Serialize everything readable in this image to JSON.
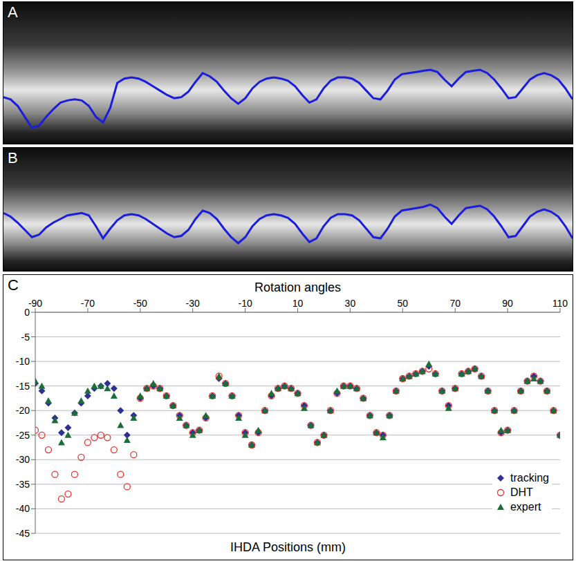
{
  "chart_data": [
    {
      "panel": "A",
      "type": "line",
      "tick_labels": false,
      "x": [
        -90,
        -87.5,
        -85,
        -82.5,
        -80,
        -77.5,
        -75,
        -72.5,
        -70,
        -67.5,
        -65,
        -62.5,
        -60,
        -57.5,
        -55,
        -52.5,
        -50,
        -47.5,
        -45,
        -42.5,
        -40,
        -37.5,
        -35,
        -32.5,
        -30,
        -27.5,
        -25,
        -22.5,
        -20,
        -17.5,
        -15,
        -12.5,
        -10,
        -7.5,
        -5,
        -2.5,
        0,
        2.5,
        5,
        7.5,
        10,
        12.5,
        15,
        17.5,
        20,
        22.5,
        25,
        27.5,
        30,
        32.5,
        35,
        37.5,
        40,
        42.5,
        45,
        47.5,
        50,
        52.5,
        55,
        57.5,
        60,
        62.5,
        65,
        67.5,
        70,
        72.5,
        75,
        77.5,
        80,
        82.5,
        85,
        87.5,
        90,
        92.5,
        95,
        97.5,
        100,
        102.5,
        105,
        107.5,
        110
      ],
      "series": [
        {
          "color": "#1c1cdc",
          "values": [
            -24,
            -25,
            -28,
            -33,
            -38,
            -37,
            -33,
            -29.5,
            -26.5,
            -25.5,
            -25,
            -25.5,
            -28,
            -33,
            -35.5,
            -29,
            -17.5,
            -15.5,
            -15,
            -15.5,
            -17,
            -19,
            -21,
            -23,
            -24.5,
            -24,
            -21.5,
            -17,
            -13,
            -14.5,
            -17,
            -21,
            -24.5,
            -27,
            -24.5,
            -20,
            -17,
            -15.5,
            -15,
            -15.5,
            -16.5,
            -19,
            -23,
            -26.5,
            -25,
            -20,
            -16.5,
            -15,
            -15,
            -15.5,
            -17.5,
            -21,
            -24.5,
            -25,
            -21,
            -16,
            -13.5,
            -13,
            -12.5,
            -12,
            -11.5,
            -12.5,
            -16,
            -19,
            -15.5,
            -12.5,
            -12,
            -11.5,
            -13,
            -16,
            -20,
            -24.5,
            -24,
            -20,
            -16,
            -14,
            -13,
            -14,
            -16,
            -20,
            -25
          ]
        }
      ]
    },
    {
      "panel": "B",
      "type": "line",
      "tick_labels": false,
      "x": [
        -90,
        -87.5,
        -85,
        -82.5,
        -80,
        -77.5,
        -75,
        -72.5,
        -70,
        -67.5,
        -65,
        -62.5,
        -60,
        -57.5,
        -55,
        -52.5,
        -50,
        -47.5,
        -45,
        -42.5,
        -40,
        -37.5,
        -35,
        -32.5,
        -30,
        -27.5,
        -25,
        -22.5,
        -20,
        -17.5,
        -15,
        -12.5,
        -10,
        -7.5,
        -5,
        -2.5,
        0,
        2.5,
        5,
        7.5,
        10,
        12.5,
        15,
        17.5,
        20,
        22.5,
        25,
        27.5,
        30,
        32.5,
        35,
        37.5,
        40,
        42.5,
        45,
        47.5,
        50,
        52.5,
        55,
        57.5,
        60,
        62.5,
        65,
        67.5,
        70,
        72.5,
        75,
        77.5,
        80,
        82.5,
        85,
        87.5,
        90,
        92.5,
        95,
        97.5,
        100,
        102.5,
        105,
        107.5,
        110
      ],
      "series": [
        {
          "color": "#1c1cdc",
          "values": [
            -14.5,
            -16,
            -18.5,
            -21.5,
            -24.5,
            -23.5,
            -20.5,
            -18.5,
            -17,
            -15.5,
            -15,
            -14.5,
            -15.5,
            -20,
            -25,
            -21,
            -17.5,
            -15.5,
            -15,
            -15.5,
            -17,
            -19,
            -21,
            -23,
            -24.5,
            -24,
            -21.5,
            -17,
            -13.5,
            -14.5,
            -17,
            -21,
            -24.5,
            -27,
            -24.5,
            -20,
            -17,
            -15.5,
            -15,
            -15.5,
            -16.5,
            -19,
            -23,
            -26.5,
            -25,
            -20,
            -16.5,
            -15,
            -15,
            -15.5,
            -17.5,
            -21,
            -24.5,
            -25,
            -21,
            -16,
            -13.5,
            -13,
            -12.5,
            -12,
            -11,
            -12.5,
            -16,
            -19,
            -15.5,
            -12.5,
            -12,
            -11.5,
            -13,
            -16,
            -20,
            -24.5,
            -24,
            -20,
            -16,
            -14,
            -13,
            -14,
            -16,
            -20,
            -25
          ]
        }
      ]
    },
    {
      "panel": "C",
      "type": "scatter",
      "x_label": "Rotation angles",
      "y_label": "IHDA Positions (mm)",
      "xlim": [
        -90,
        110
      ],
      "xticks": [
        -90,
        -70,
        -50,
        -30,
        -10,
        10,
        30,
        50,
        70,
        90,
        110
      ],
      "ylim": [
        -45,
        0
      ],
      "yticks": [
        0,
        -5,
        -10,
        -15,
        -20,
        -25,
        -30,
        -35,
        -40,
        -45
      ],
      "grid": true,
      "legend": "lower right",
      "x": [
        -90,
        -87.5,
        -85,
        -82.5,
        -80,
        -77.5,
        -75,
        -72.5,
        -70,
        -67.5,
        -65,
        -62.5,
        -60,
        -57.5,
        -55,
        -52.5,
        -50,
        -47.5,
        -45,
        -42.5,
        -40,
        -37.5,
        -35,
        -32.5,
        -30,
        -27.5,
        -25,
        -22.5,
        -20,
        -17.5,
        -15,
        -12.5,
        -10,
        -7.5,
        -5,
        -2.5,
        0,
        2.5,
        5,
        7.5,
        10,
        12.5,
        15,
        17.5,
        20,
        22.5,
        25,
        27.5,
        30,
        32.5,
        35,
        37.5,
        40,
        42.5,
        45,
        47.5,
        50,
        52.5,
        55,
        57.5,
        60,
        62.5,
        65,
        67.5,
        70,
        72.5,
        75,
        77.5,
        80,
        82.5,
        85,
        87.5,
        90,
        92.5,
        95,
        97.5,
        100,
        102.5,
        105,
        107.5,
        110
      ],
      "series": [
        {
          "name": "tracking",
          "color": "#2e3192",
          "marker": "diamond",
          "values": [
            -14.5,
            -16,
            -18.5,
            -21.5,
            -24.5,
            -23.5,
            -20.5,
            -18.5,
            -17,
            -15.5,
            -15,
            -14.5,
            -15.5,
            -20,
            -25,
            -21,
            -17.5,
            -15.5,
            -15,
            -15.5,
            -17,
            -19,
            -21,
            -23,
            -24.5,
            -24,
            -21.5,
            -17,
            -13.5,
            -14.5,
            -17,
            -21,
            -24.5,
            -27,
            -24.5,
            -20,
            -17,
            -15.5,
            -15,
            -15.5,
            -16.5,
            -19,
            -23,
            -26.5,
            -25,
            -20,
            -16.5,
            -15,
            -15,
            -15.5,
            -17.5,
            -21,
            -24.5,
            -25,
            -21,
            -16,
            -13.5,
            -13,
            -12.5,
            -12,
            -11,
            -12.5,
            -16,
            -19,
            -15.5,
            -12.5,
            -12,
            -11.5,
            -13,
            -16,
            -20,
            -24.5,
            -24,
            -20,
            -16,
            -14,
            -13,
            -14,
            -16,
            -20,
            -25
          ]
        },
        {
          "name": "DHT",
          "color": "#e8302a",
          "marker": "open_circle",
          "values": [
            -24,
            -25,
            -28,
            -33,
            -38,
            -37,
            -33,
            -29.5,
            -26.5,
            -25.5,
            -25,
            -25.5,
            -28,
            -33,
            -35.5,
            -29,
            -17.5,
            -15.5,
            -15,
            -15.5,
            -17,
            -19,
            -21,
            -23,
            -24.5,
            -24,
            -21.5,
            -17,
            -13,
            -14.5,
            -17,
            -21,
            -24.5,
            -27,
            -24.5,
            -20,
            -17,
            -15.5,
            -15,
            -15.5,
            -16.5,
            -19,
            -23,
            -26.5,
            -25,
            -20,
            -16.5,
            -15,
            -15,
            -15.5,
            -17.5,
            -21,
            -24.5,
            -25,
            -21,
            -16,
            -13.5,
            -13,
            -12.5,
            -12,
            -11.5,
            -12.5,
            -16,
            -19,
            -15.5,
            -12.5,
            -12,
            -11.5,
            -13,
            -16,
            -20,
            -24.5,
            -24,
            -20,
            -16,
            -14,
            -13,
            -14,
            -16,
            -20,
            -25
          ]
        },
        {
          "name": "expert",
          "color": "#1b6e3a",
          "marker": "triangle",
          "values": [
            -14,
            -15,
            -18,
            -22,
            -26.5,
            -25,
            -20.5,
            -18,
            -16,
            -15,
            -15,
            -15.5,
            -17,
            -23,
            -26,
            -21.5,
            -17,
            -15.5,
            -14.5,
            -15.5,
            -17,
            -19,
            -21.5,
            -23,
            -25,
            -24,
            -21,
            -17,
            -13,
            -14.5,
            -17,
            -21.5,
            -25,
            -27,
            -24,
            -20,
            -16.5,
            -15.5,
            -15,
            -15.5,
            -16.5,
            -19.5,
            -23,
            -26.5,
            -25,
            -20,
            -16,
            -15,
            -15,
            -15.5,
            -17.5,
            -21,
            -24.5,
            -25.5,
            -21,
            -16,
            -13.5,
            -13,
            -12.5,
            -12,
            -10.5,
            -12.5,
            -16,
            -19.5,
            -15.5,
            -12.5,
            -12,
            -11.5,
            -13,
            -16,
            -20,
            -24,
            -24,
            -20,
            -16,
            -14,
            -13.5,
            -14,
            -16,
            -20,
            -25
          ]
        }
      ]
    }
  ]
}
